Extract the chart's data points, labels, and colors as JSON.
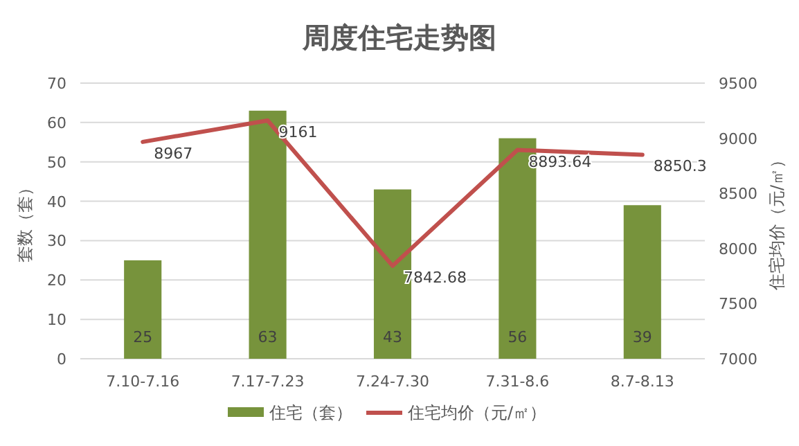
{
  "chart_data": {
    "type": "bar",
    "title": "周度住宅走势图",
    "categories": [
      "7.10-7.16",
      "7.17-7.23",
      "7.24-7.30",
      "7.31-8.6",
      "8.7-8.13"
    ],
    "series": [
      {
        "name": "住宅（套）",
        "color": "#77933c",
        "values": [
          25,
          63,
          43,
          56,
          39
        ]
      },
      {
        "name": "住宅均价（元/㎡）",
        "type": "line",
        "axis": "y2",
        "color": "#c0504d",
        "values": [
          8967,
          9161,
          7842.68,
          8893.64,
          8850.3
        ]
      }
    ],
    "ylabel": "套数（套）",
    "y2label": "住宅均价（元/㎡）",
    "ylim": [
      0,
      70
    ],
    "yticks": [
      0,
      10,
      20,
      30,
      40,
      50,
      60,
      70
    ],
    "y2lim": [
      7000,
      9500
    ],
    "y2ticks": [
      7000,
      7500,
      8000,
      8500,
      9000,
      9500
    ],
    "grid": "y",
    "legend": "bottom",
    "data_labels": true,
    "marker": "none"
  }
}
